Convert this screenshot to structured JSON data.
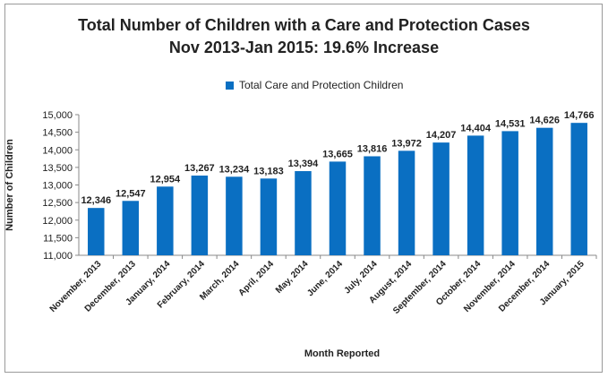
{
  "chart_data": {
    "type": "bar",
    "title_line1": "Total Number of Children with a Care and Protection Cases",
    "title_line2": "Nov 2013-Jan 2015: 19.6% Increase",
    "legend": [
      "Total Care and Protection Children"
    ],
    "xlabel": "Month Reported",
    "ylabel": "Number of Children",
    "ylim": [
      11000,
      15000
    ],
    "yticks": [
      "11,000",
      "11,500",
      "12,000",
      "12,500",
      "13,000",
      "13,500",
      "14,000",
      "14,500",
      "15,000"
    ],
    "ytick_values": [
      11000,
      11500,
      12000,
      12500,
      13000,
      13500,
      14000,
      14500,
      15000
    ],
    "categories": [
      "November, 2013",
      "December, 2013",
      "January, 2014",
      "February, 2014",
      "March, 2014",
      "April, 2014",
      "May, 2014",
      "June, 2014",
      "July, 2014",
      "August, 2014",
      "September, 2014",
      "October, 2014",
      "November, 2014",
      "December, 2014",
      "January, 2015"
    ],
    "series": [
      {
        "name": "Total Care and Protection Children",
        "values": [
          12346,
          12547,
          12954,
          13267,
          13234,
          13183,
          13394,
          13665,
          13816,
          13972,
          14207,
          14404,
          14531,
          14626,
          14766
        ],
        "labels": [
          "12,346",
          "12,547",
          "12,954",
          "13,267",
          "13,234",
          "13,183",
          "13,394",
          "13,665",
          "13,816",
          "13,972",
          "14,207",
          "14,404",
          "14,531",
          "14,626",
          "14,766"
        ]
      }
    ],
    "bar_color": "#0a6fc2",
    "grid": false
  }
}
